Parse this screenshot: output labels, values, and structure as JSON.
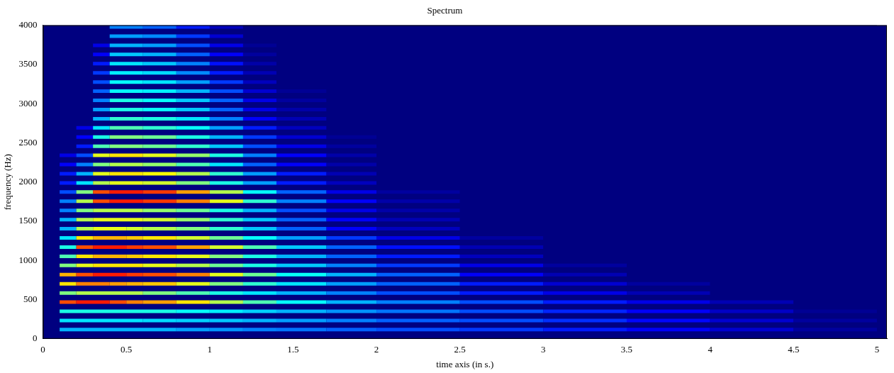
{
  "chart_data": {
    "type": "heatmap",
    "title": "Spectrum",
    "x_label": "time axis (in s.)",
    "y_label": "frequency (Hz)",
    "x": [
      0.1,
      0.2,
      0.3,
      0.4,
      0.5,
      0.6,
      0.8,
      1.0,
      1.2,
      1.4,
      1.7,
      2.0,
      2.5,
      3.0,
      3.5,
      4.0,
      4.5,
      5.0
    ],
    "rows": [
      {
        "frequency": 117,
        "values": [
          0.3,
          0.3,
          0.3,
          0.3,
          0.3,
          0.3,
          0.28,
          0.27,
          0.25,
          0.24,
          0.22,
          0.2,
          0.18,
          0.15,
          0.12,
          0.08,
          0.03,
          0
        ]
      },
      {
        "frequency": 234,
        "values": [
          0.35,
          0.35,
          0.35,
          0.35,
          0.35,
          0.34,
          0.33,
          0.32,
          0.3,
          0.28,
          0.25,
          0.22,
          0.2,
          0.17,
          0.13,
          0.08,
          0.03,
          0
        ]
      },
      {
        "frequency": 351,
        "values": [
          0.4,
          0.4,
          0.4,
          0.4,
          0.4,
          0.4,
          0.38,
          0.36,
          0.33,
          0.3,
          0.27,
          0.24,
          0.2,
          0.16,
          0.12,
          0.07,
          0.02,
          0
        ]
      },
      {
        "frequency": 468,
        "values": [
          0.8,
          0.85,
          0.85,
          0.8,
          0.75,
          0.72,
          0.65,
          0.55,
          0.45,
          0.38,
          0.3,
          0.25,
          0.2,
          0.15,
          0.1,
          0.05,
          0,
          0
        ]
      },
      {
        "frequency": 585,
        "values": [
          0.5,
          0.55,
          0.55,
          0.55,
          0.55,
          0.5,
          0.45,
          0.4,
          0.35,
          0.3,
          0.25,
          0.2,
          0.15,
          0.1,
          0.05,
          0,
          0,
          0
        ]
      },
      {
        "frequency": 702,
        "values": [
          0.65,
          0.75,
          0.75,
          0.72,
          0.7,
          0.68,
          0.6,
          0.5,
          0.42,
          0.35,
          0.28,
          0.22,
          0.15,
          0.08,
          0.03,
          0,
          0,
          0
        ]
      },
      {
        "frequency": 819,
        "values": [
          0.7,
          0.8,
          0.85,
          0.85,
          0.82,
          0.8,
          0.75,
          0.6,
          0.48,
          0.38,
          0.3,
          0.22,
          0.12,
          0.05,
          0,
          0,
          0,
          0
        ]
      },
      {
        "frequency": 936,
        "values": [
          0.5,
          0.6,
          0.65,
          0.65,
          0.65,
          0.6,
          0.55,
          0.48,
          0.4,
          0.32,
          0.25,
          0.18,
          0.1,
          0.03,
          0,
          0,
          0,
          0
        ]
      },
      {
        "frequency": 1053,
        "values": [
          0.45,
          0.65,
          0.7,
          0.7,
          0.68,
          0.65,
          0.6,
          0.5,
          0.4,
          0.3,
          0.22,
          0.15,
          0.06,
          0,
          0,
          0,
          0,
          0
        ]
      },
      {
        "frequency": 1170,
        "values": [
          0.4,
          0.8,
          0.85,
          0.85,
          0.82,
          0.8,
          0.72,
          0.58,
          0.45,
          0.32,
          0.22,
          0.14,
          0.05,
          0,
          0,
          0,
          0,
          0
        ]
      },
      {
        "frequency": 1287,
        "values": [
          0.35,
          0.65,
          0.7,
          0.7,
          0.68,
          0.65,
          0.58,
          0.48,
          0.38,
          0.28,
          0.18,
          0.1,
          0.03,
          0,
          0,
          0,
          0,
          0
        ]
      },
      {
        "frequency": 1404,
        "values": [
          0.3,
          0.55,
          0.6,
          0.6,
          0.58,
          0.55,
          0.5,
          0.42,
          0.32,
          0.22,
          0.12,
          0.06,
          0,
          0,
          0,
          0,
          0,
          0
        ]
      },
      {
        "frequency": 1521,
        "values": [
          0.3,
          0.55,
          0.6,
          0.6,
          0.6,
          0.58,
          0.52,
          0.42,
          0.32,
          0.22,
          0.12,
          0.05,
          0,
          0,
          0,
          0,
          0,
          0
        ]
      },
      {
        "frequency": 1638,
        "values": [
          0.25,
          0.5,
          0.55,
          0.55,
          0.55,
          0.52,
          0.48,
          0.4,
          0.3,
          0.2,
          0.1,
          0.04,
          0,
          0,
          0,
          0,
          0,
          0
        ]
      },
      {
        "frequency": 1755,
        "values": [
          0.25,
          0.55,
          0.8,
          0.85,
          0.85,
          0.82,
          0.75,
          0.6,
          0.42,
          0.25,
          0.12,
          0.04,
          0,
          0,
          0,
          0,
          0,
          0
        ]
      },
      {
        "frequency": 1872,
        "values": [
          0.2,
          0.5,
          0.8,
          0.85,
          0.85,
          0.82,
          0.72,
          0.55,
          0.38,
          0.22,
          0.1,
          0.03,
          0,
          0,
          0,
          0,
          0,
          0
        ]
      },
      {
        "frequency": 1989,
        "values": [
          0.15,
          0.35,
          0.55,
          0.6,
          0.6,
          0.58,
          0.5,
          0.4,
          0.28,
          0.15,
          0.06,
          0,
          0,
          0,
          0,
          0,
          0,
          0
        ]
      },
      {
        "frequency": 2106,
        "values": [
          0.15,
          0.3,
          0.6,
          0.65,
          0.65,
          0.62,
          0.55,
          0.42,
          0.28,
          0.15,
          0.05,
          0,
          0,
          0,
          0,
          0,
          0,
          0
        ]
      },
      {
        "frequency": 2223,
        "values": [
          0.12,
          0.25,
          0.5,
          0.55,
          0.55,
          0.52,
          0.45,
          0.35,
          0.22,
          0.12,
          0.04,
          0,
          0,
          0,
          0,
          0,
          0,
          0
        ]
      },
      {
        "frequency": 2340,
        "values": [
          0.1,
          0.2,
          0.6,
          0.65,
          0.65,
          0.6,
          0.52,
          0.4,
          0.25,
          0.12,
          0.04,
          0,
          0,
          0,
          0,
          0,
          0,
          0
        ]
      },
      {
        "frequency": 2457,
        "values": [
          null,
          0.15,
          0.45,
          0.5,
          0.5,
          0.48,
          0.42,
          0.32,
          0.2,
          0.1,
          0.03,
          0,
          0,
          0,
          0,
          0,
          0,
          0
        ]
      },
      {
        "frequency": 2574,
        "values": [
          null,
          0.12,
          0.4,
          0.5,
          0.5,
          0.48,
          0.4,
          0.3,
          0.18,
          0.08,
          0.02,
          0,
          0,
          0,
          0,
          0,
          0,
          0
        ]
      },
      {
        "frequency": 2691,
        "values": [
          null,
          0.1,
          0.35,
          0.45,
          0.45,
          0.42,
          0.38,
          0.28,
          0.15,
          0.06,
          0,
          0,
          0,
          0,
          0,
          0,
          0,
          0
        ]
      },
      {
        "frequency": 2808,
        "values": [
          null,
          null,
          0.3,
          0.42,
          0.42,
          0.4,
          0.35,
          0.25,
          0.12,
          0.05,
          0,
          0,
          0,
          0,
          0,
          0,
          0,
          0
        ]
      },
      {
        "frequency": 2925,
        "values": [
          null,
          null,
          0.28,
          0.4,
          0.4,
          0.38,
          0.32,
          0.22,
          0.1,
          0.04,
          0,
          0,
          0,
          0,
          0,
          0,
          0,
          0
        ]
      },
      {
        "frequency": 3042,
        "values": [
          null,
          null,
          0.25,
          0.4,
          0.4,
          0.38,
          0.32,
          0.22,
          0.1,
          0.03,
          0,
          0,
          0,
          0,
          0,
          0,
          0,
          0
        ]
      },
      {
        "frequency": 3159,
        "values": [
          null,
          null,
          0.22,
          0.38,
          0.38,
          0.36,
          0.3,
          0.2,
          0.08,
          0.02,
          0,
          0,
          0,
          0,
          0,
          0,
          0,
          0
        ]
      },
      {
        "frequency": 3276,
        "values": [
          null,
          null,
          0.2,
          0.38,
          0.38,
          0.35,
          0.28,
          0.18,
          0.06,
          0,
          0,
          0,
          0,
          0,
          0,
          0,
          0,
          0
        ]
      },
      {
        "frequency": 3393,
        "values": [
          null,
          null,
          0.18,
          0.36,
          0.36,
          0.34,
          0.26,
          0.15,
          0.05,
          0,
          0,
          0,
          0,
          0,
          0,
          0,
          0,
          0
        ]
      },
      {
        "frequency": 3510,
        "values": [
          null,
          null,
          0.15,
          0.35,
          0.35,
          0.32,
          0.25,
          0.14,
          0.04,
          0,
          0,
          0,
          0,
          0,
          0,
          0,
          0,
          0
        ]
      },
      {
        "frequency": 3627,
        "values": [
          null,
          null,
          0.12,
          0.32,
          0.32,
          0.3,
          0.22,
          0.12,
          0.03,
          0,
          0,
          0,
          0,
          0,
          0,
          0,
          0,
          0
        ]
      },
      {
        "frequency": 3744,
        "values": [
          null,
          null,
          0.1,
          0.3,
          0.3,
          0.28,
          0.2,
          0.1,
          0.02,
          0,
          0,
          0,
          0,
          0,
          0,
          0,
          0,
          0
        ]
      },
      {
        "frequency": 3861,
        "values": [
          null,
          null,
          null,
          0.28,
          0.28,
          0.26,
          0.18,
          0.08,
          0,
          0,
          0,
          0,
          0,
          0,
          0,
          0,
          0,
          0
        ]
      },
      {
        "frequency": 3978,
        "values": [
          null,
          null,
          null,
          0.25,
          0.25,
          0.22,
          0.15,
          0.06,
          0,
          0,
          0,
          0,
          0,
          0,
          0,
          0,
          0,
          0
        ]
      }
    ],
    "color_range": [
      0,
      1
    ],
    "xlim": [
      0,
      5.06
    ],
    "xticks": [
      0,
      0.5,
      1,
      1.5,
      2,
      2.5,
      3,
      3.5,
      4,
      4.5,
      5
    ],
    "ylim": [
      0,
      4000
    ],
    "yticks": [
      0,
      500,
      1000,
      1500,
      2000,
      2500,
      3000,
      3500,
      4000
    ],
    "grid": false
  }
}
